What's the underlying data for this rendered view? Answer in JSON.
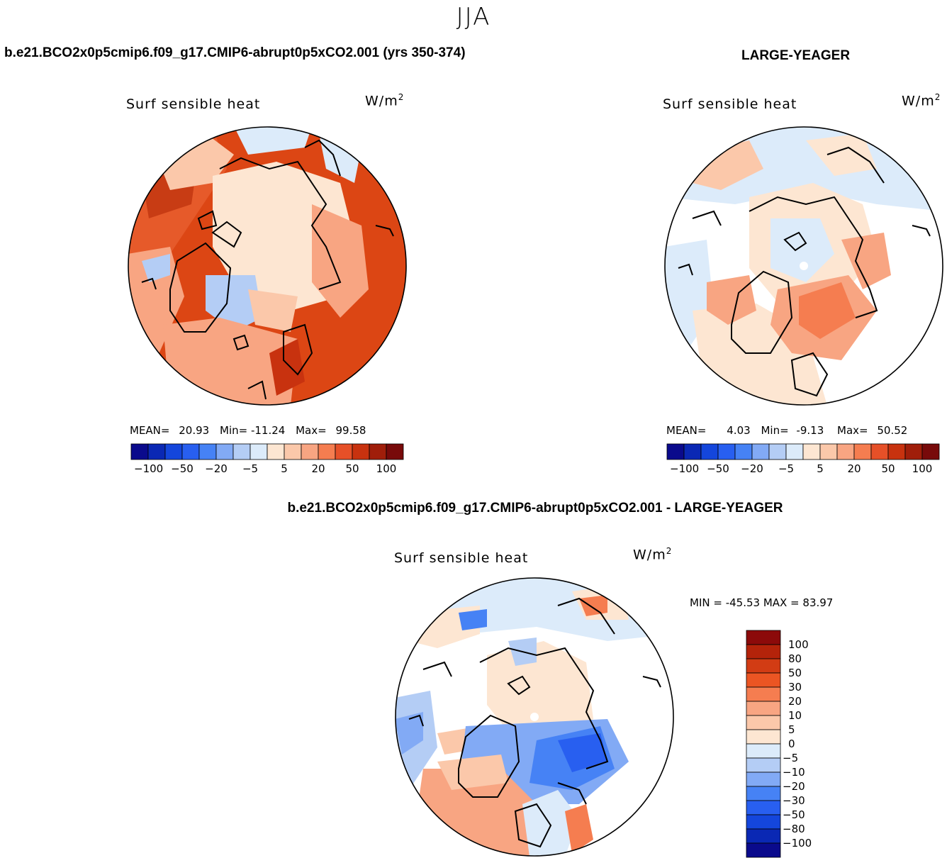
{
  "season": "JJA",
  "panels": [
    {
      "case_title": "b.e21.BCO2x0p5cmip6.f09_g17.CMIP6-abrupt0p5xCO2.001 (yrs 350-374)",
      "variable": "Surf sensible heat",
      "units_base": "W/m",
      "units_exp": "2",
      "stats": {
        "mean_label": "MEAN=",
        "mean": "20.93",
        "min_label": "Min=",
        "min": "-11.24",
        "max_label": "Max=",
        "max": "99.58"
      }
    },
    {
      "case_title": "LARGE-YEAGER",
      "variable": "Surf sensible heat",
      "units_base": "W/m",
      "units_exp": "2",
      "stats": {
        "mean_label": "MEAN=",
        "mean": "4.03",
        "min_label": "Min=",
        "min": "-9.13",
        "max_label": "Max=",
        "max": "50.52"
      }
    },
    {
      "case_title": "b.e21.BCO2x0p5cmip6.f09_g17.CMIP6-abrupt0p5xCO2.001 - LARGE-YEAGER",
      "variable": "Surf sensible heat",
      "units_base": "W/m",
      "units_exp": "2",
      "stats_text": "MIN = -45.53 MAX =  83.97"
    }
  ],
  "horizontal_colorbar": {
    "colors": [
      "#0a0a8c",
      "#0a28b4",
      "#1446dc",
      "#285ff0",
      "#4682f5",
      "#82aaf5",
      "#b4cdf5",
      "#dcebfa",
      "#fde6d2",
      "#fbc8aa",
      "#f8a582",
      "#f57d50",
      "#e65028",
      "#c8320f",
      "#a01e0a",
      "#780a0a"
    ],
    "tick_labels": [
      "-100",
      "-50",
      "-20",
      "-5",
      "5",
      "20",
      "50",
      "100"
    ]
  },
  "vertical_colorbar": {
    "colors": [
      "#8c0a0a",
      "#b4230a",
      "#d23c14",
      "#eb5523",
      "#f57d50",
      "#f8a582",
      "#fbc8aa",
      "#fde6d2",
      "#dcebfa",
      "#b4cdf5",
      "#82aaf5",
      "#4682f5",
      "#285ff0",
      "#1446dc",
      "#0a28b4",
      "#0a0a8c"
    ],
    "tick_labels": [
      "100",
      "80",
      "50",
      "30",
      "20",
      "10",
      "5",
      "0",
      "-5",
      "-10",
      "-20",
      "-30",
      "-50",
      "-80",
      "-100"
    ]
  },
  "colors": {
    "land_outline": "#000000",
    "background": "#ffffff"
  }
}
